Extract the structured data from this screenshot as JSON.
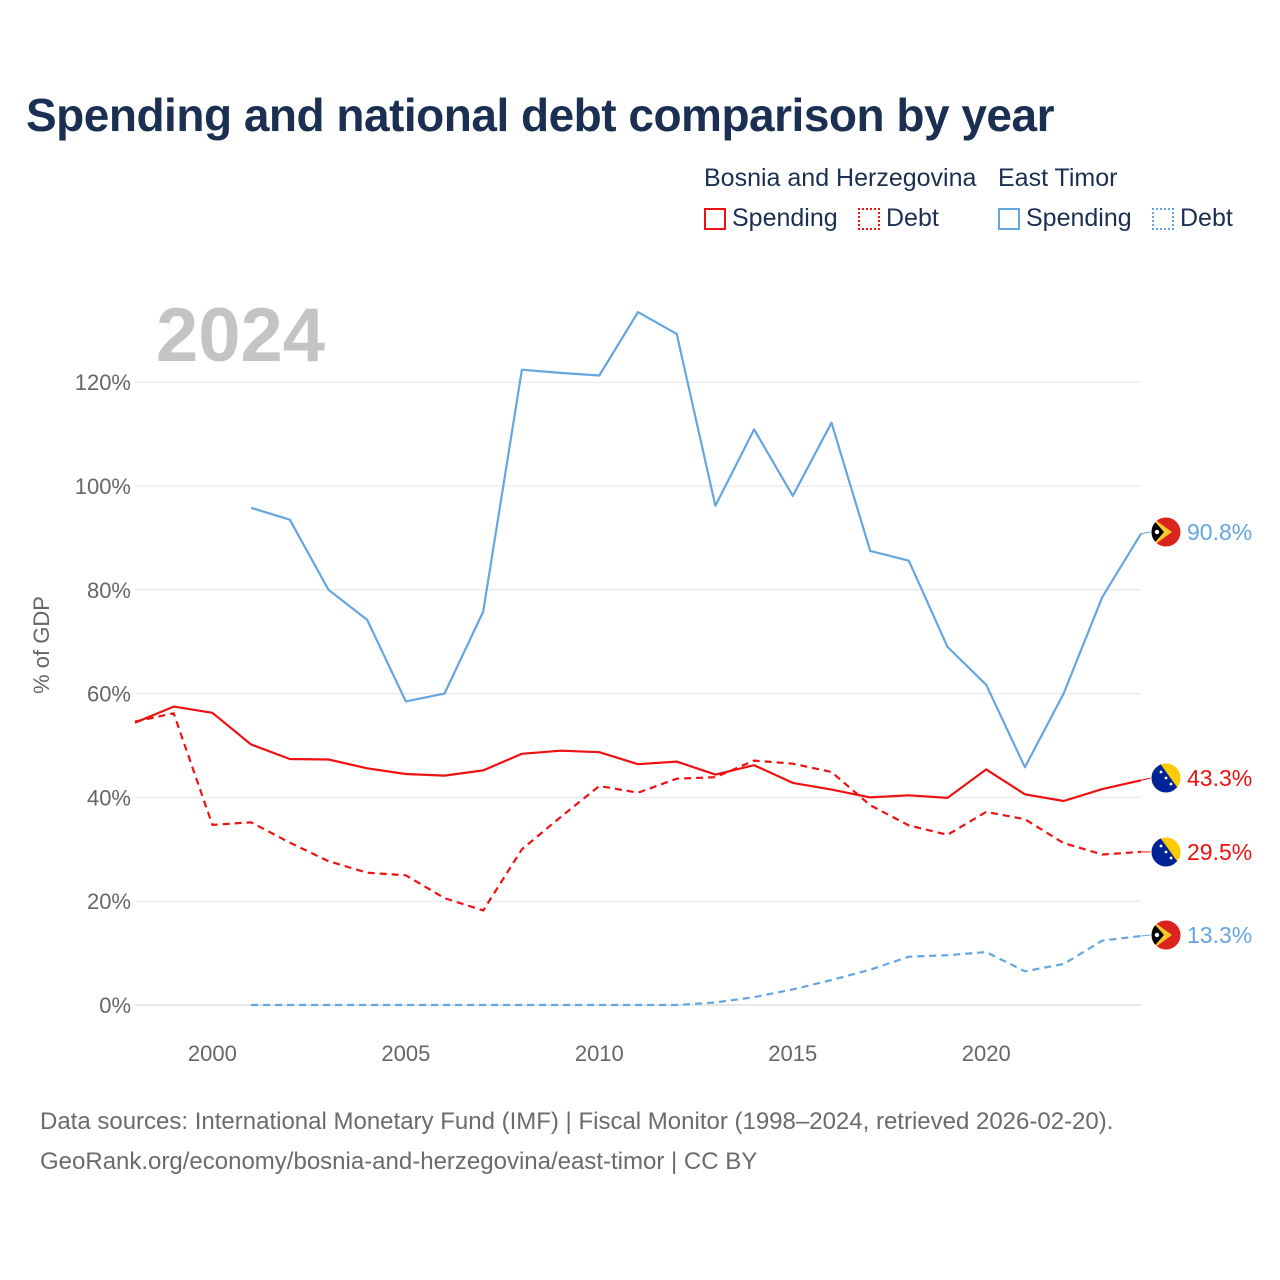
{
  "title": "Spending and national debt comparison by year",
  "legend": {
    "groups": [
      {
        "name": "Bosnia and Herzegovina",
        "spending_label": "Spending",
        "debt_label": "Debt",
        "color": "#ee1111"
      },
      {
        "name": "East Timor",
        "spending_label": "Spending",
        "debt_label": "Debt",
        "color": "#64a6e0"
      }
    ]
  },
  "footer": {
    "line1": "Data sources: International Monetary Fund (IMF) | Fiscal Monitor (1998–2024, retrieved 2026-02-20).",
    "line2": "GeoRank.org/economy/bosnia-and-herzegovina/east-timor | CC BY"
  },
  "chart_data": {
    "type": "line",
    "title": "Spending and national debt comparison by year",
    "year_label": "2024",
    "ylabel": "% of GDP",
    "xlabel": "",
    "xlim": [
      1998,
      2024
    ],
    "ylim": [
      0,
      135
    ],
    "yticks": [
      0,
      20,
      40,
      60,
      80,
      100,
      120
    ],
    "ytick_labels": [
      "0%",
      "20%",
      "40%",
      "60%",
      "80%",
      "100%",
      "120%"
    ],
    "xticks": [
      2000,
      2005,
      2010,
      2015,
      2020
    ],
    "xtick_labels": [
      "2000",
      "2005",
      "2010",
      "2015",
      "2020"
    ],
    "grid": true,
    "series": [
      {
        "name": "East Timor Spending",
        "country": "East Timor",
        "color": "#64a6e0",
        "dash": "solid",
        "end_label": "90.8%",
        "x": [
          2001,
          2002,
          2003,
          2004,
          2005,
          2006,
          2007,
          2008,
          2009,
          2010,
          2011,
          2012,
          2013,
          2014,
          2015,
          2016,
          2017,
          2018,
          2019,
          2020,
          2021,
          2022,
          2023,
          2024
        ],
        "values": [
          95.8,
          93.5,
          80.0,
          74.2,
          58.5,
          60.0,
          75.8,
          122.4,
          121.8,
          121.3,
          133.5,
          129.3,
          96.2,
          110.9,
          98.1,
          112.2,
          87.5,
          85.6,
          69.0,
          61.7,
          45.8,
          60.0,
          78.6,
          90.8
        ]
      },
      {
        "name": "Bosnia and Herzegovina Spending",
        "country": "Bosnia and Herzegovina",
        "color": "#ee1111",
        "dash": "solid",
        "end_label": "43.3%",
        "x": [
          1998,
          1999,
          2000,
          2001,
          2002,
          2003,
          2004,
          2005,
          2006,
          2007,
          2008,
          2009,
          2010,
          2011,
          2012,
          2013,
          2014,
          2015,
          2016,
          2017,
          2018,
          2019,
          2020,
          2021,
          2022,
          2023,
          2024
        ],
        "values": [
          54.4,
          57.5,
          56.3,
          50.2,
          47.4,
          47.3,
          45.6,
          44.5,
          44.2,
          45.2,
          48.4,
          49.0,
          48.7,
          46.4,
          46.9,
          44.4,
          46.2,
          42.8,
          41.5,
          40.0,
          40.4,
          39.9,
          45.4,
          40.6,
          39.3,
          41.6,
          43.3
        ]
      },
      {
        "name": "Bosnia and Herzegovina Debt",
        "country": "Bosnia and Herzegovina",
        "color": "#ee1111",
        "dash": "dashed",
        "end_label": "29.5%",
        "x": [
          1998,
          1999,
          2000,
          2001,
          2002,
          2003,
          2004,
          2005,
          2006,
          2007,
          2008,
          2009,
          2010,
          2011,
          2012,
          2013,
          2014,
          2015,
          2016,
          2017,
          2018,
          2019,
          2020,
          2021,
          2022,
          2023,
          2024
        ],
        "values": [
          54.6,
          56.2,
          34.7,
          35.2,
          31.3,
          27.7,
          25.5,
          25.0,
          20.6,
          18.2,
          30.0,
          36.2,
          42.2,
          40.9,
          43.6,
          43.9,
          47.1,
          46.5,
          44.9,
          38.5,
          34.6,
          32.8,
          37.2,
          35.8,
          31.2,
          29.0,
          29.5
        ]
      },
      {
        "name": "East Timor Debt",
        "country": "East Timor",
        "color": "#64a6e0",
        "dash": "dashed",
        "end_label": "13.3%",
        "x": [
          2001,
          2002,
          2003,
          2004,
          2005,
          2006,
          2007,
          2008,
          2009,
          2010,
          2011,
          2012,
          2013,
          2014,
          2015,
          2016,
          2017,
          2018,
          2019,
          2020,
          2021,
          2022,
          2023,
          2024
        ],
        "values": [
          0,
          0,
          0,
          0,
          0,
          0,
          0,
          0,
          0,
          0,
          0,
          0,
          0.5,
          1.5,
          3.0,
          4.8,
          6.8,
          9.3,
          9.6,
          10.2,
          6.5,
          7.9,
          12.4,
          13.3
        ]
      }
    ]
  }
}
